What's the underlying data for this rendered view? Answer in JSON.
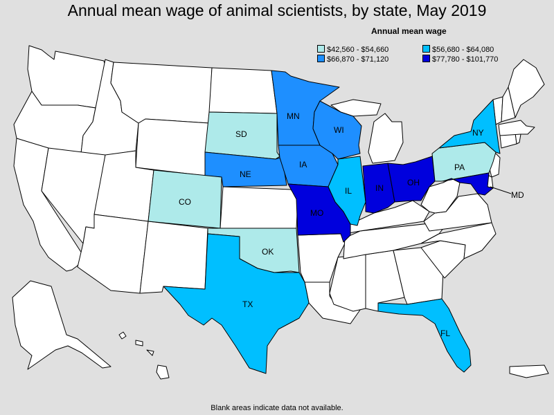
{
  "title": "Annual mean wage of animal scientists, by state, May 2019",
  "legend": {
    "title": "Annual mean wage",
    "items": [
      {
        "label": "$42,560 - $54,660",
        "color": "#aeeaea"
      },
      {
        "label": "$56,680 - $64,080",
        "color": "#00bfff"
      },
      {
        "label": "$66,870 - $71,120",
        "color": "#1e8fff"
      },
      {
        "label": "$77,780 - $101,770",
        "color": "#0000dd"
      }
    ]
  },
  "colors": {
    "no_data": "#ffffff",
    "background": "#e0e0e0",
    "border": "#000000"
  },
  "states": {
    "SD": {
      "label": "SD",
      "bin": 0
    },
    "CO": {
      "label": "CO",
      "bin": 0
    },
    "OK": {
      "label": "OK",
      "bin": 0
    },
    "PA": {
      "label": "PA",
      "bin": 0
    },
    "TX": {
      "label": "TX",
      "bin": 1
    },
    "IL": {
      "label": "IL",
      "bin": 1
    },
    "NY": {
      "label": "NY",
      "bin": 1
    },
    "FL": {
      "label": "FL",
      "bin": 1
    },
    "MN": {
      "label": "MN",
      "bin": 2
    },
    "WI": {
      "label": "WI",
      "bin": 2
    },
    "NE": {
      "label": "NE",
      "bin": 2
    },
    "IA": {
      "label": "IA",
      "bin": 2
    },
    "MO": {
      "label": "MO",
      "bin": 3
    },
    "IN": {
      "label": "IN",
      "bin": 3
    },
    "OH": {
      "label": "OH",
      "bin": 3
    },
    "MD": {
      "label": "MD",
      "bin": 3
    }
  },
  "footnote": "Blank areas indicate data not available."
}
